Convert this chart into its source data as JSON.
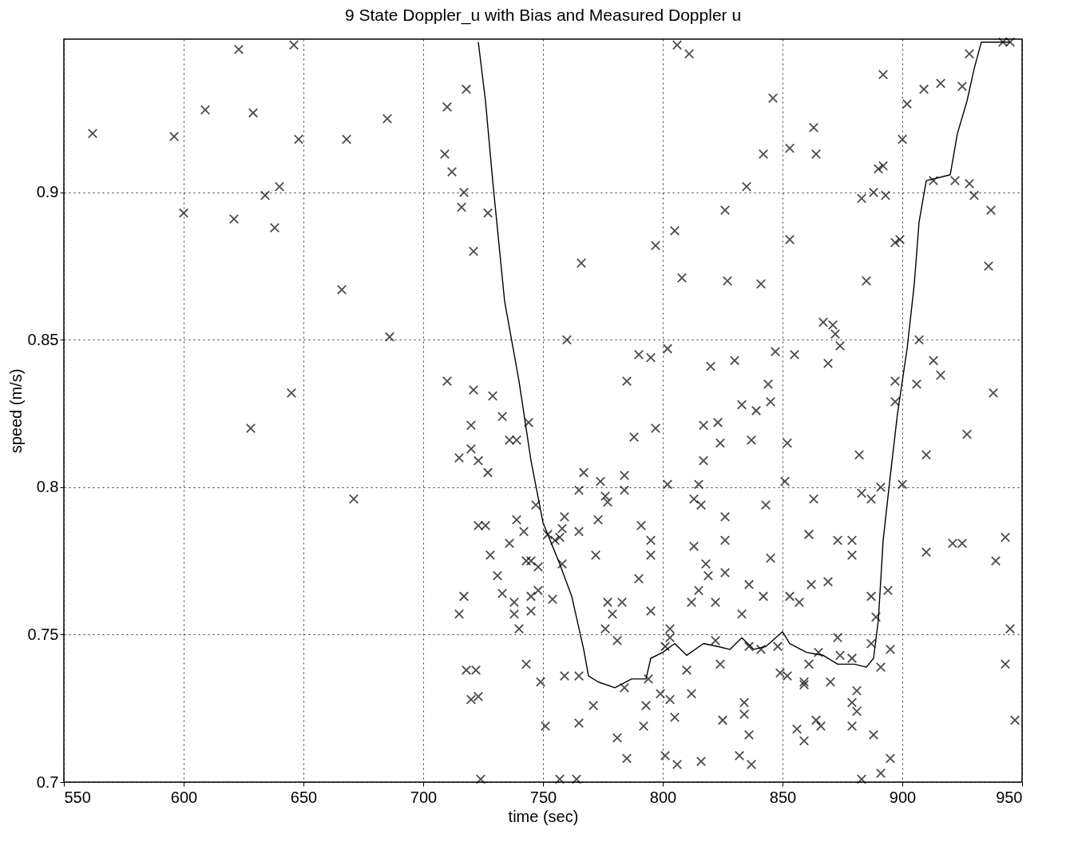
{
  "chart_data": {
    "type": "scatter",
    "title": "9 State Doppler_u with Bias and Measured Doppler u",
    "xlabel": "time (sec)",
    "ylabel": "speed (m/s)",
    "xlim": [
      550,
      950
    ],
    "ylim": [
      0.7,
      0.952
    ],
    "xticks": [
      550,
      600,
      650,
      700,
      750,
      800,
      850,
      900,
      950
    ],
    "yticks": [
      0.7,
      0.75,
      0.8,
      0.85,
      0.9
    ],
    "grid": true,
    "series": [
      {
        "type": "scatter",
        "marker": "cross",
        "color": "#000000",
        "x": [
          562,
          623,
          646,
          609,
          629,
          596,
          648,
          668,
          685,
          600,
          634,
          640,
          621,
          638,
          666,
          686,
          645,
          628,
          671,
          710,
          718,
          709,
          712,
          717,
          716,
          727,
          721,
          710,
          721,
          720,
          720,
          715,
          723,
          727,
          729,
          733,
          736,
          739,
          744,
          723,
          726,
          717,
          715,
          728,
          731,
          733,
          739,
          736,
          742,
          743,
          745,
          745,
          738,
          738,
          740,
          745,
          748,
          748,
          747,
          752,
          743,
          718,
          722,
          720,
          723,
          724,
          749,
          751,
          757,
          758,
          759,
          755,
          758,
          757,
          754,
          759,
          765,
          765,
          767,
          765,
          764,
          765,
          766,
          760,
          772,
          771,
          774,
          776,
          773,
          777,
          777,
          779,
          776,
          781,
          783,
          781,
          784,
          784,
          784,
          785,
          785,
          788,
          790,
          795,
          793,
          792,
          794,
          791,
          790,
          795,
          795,
          797,
          797,
          795,
          803,
          799,
          801,
          802,
          802,
          801,
          803,
          805,
          806,
          811,
          808,
          803,
          805,
          806,
          813,
          812,
          813,
          810,
          815,
          812,
          816,
          815,
          816,
          818,
          819,
          817,
          817,
          820,
          823,
          824,
          822,
          822,
          824,
          825,
          826,
          826,
          826,
          826,
          827,
          830,
          835,
          833,
          833,
          834,
          834,
          836,
          836,
          837,
          836,
          832,
          837,
          839,
          842,
          841,
          841,
          842,
          844,
          845,
          846,
          843,
          845,
          847,
          848,
          849,
          851,
          852,
          852,
          853,
          853,
          853,
          855,
          856,
          859,
          859,
          857,
          859,
          861,
          861,
          862,
          863,
          863,
          864,
          865,
          864,
          866,
          867,
          869,
          869,
          871,
          870,
          872,
          873,
          874,
          873,
          879,
          879,
          874,
          879,
          879,
          879,
          881,
          881,
          883,
          883,
          883,
          885,
          882,
          887,
          887,
          887,
          888,
          888,
          890,
          889,
          891,
          891,
          892,
          891,
          893,
          892,
          895,
          895,
          894,
          897,
          897,
          897,
          899,
          900,
          900,
          902,
          906,
          907,
          909,
          910,
          910,
          913,
          916,
          916,
          913,
          922,
          925,
          928,
          928,
          930,
          927,
          921,
          925,
          936,
          937,
          938,
          939,
          943,
          943,
          945,
          947,
          942,
          945
        ],
        "values": [
          0.92,
          0.9485,
          0.95,
          0.928,
          0.927,
          0.919,
          0.918,
          0.918,
          0.925,
          0.893,
          0.899,
          0.902,
          0.891,
          0.888,
          0.867,
          0.851,
          0.832,
          0.82,
          0.796,
          0.929,
          0.935,
          0.913,
          0.907,
          0.9,
          0.895,
          0.893,
          0.88,
          0.836,
          0.833,
          0.821,
          0.813,
          0.81,
          0.809,
          0.805,
          0.831,
          0.824,
          0.816,
          0.816,
          0.822,
          0.787,
          0.787,
          0.763,
          0.757,
          0.777,
          0.77,
          0.764,
          0.789,
          0.781,
          0.785,
          0.775,
          0.775,
          0.763,
          0.761,
          0.757,
          0.752,
          0.758,
          0.765,
          0.773,
          0.794,
          0.784,
          0.74,
          0.738,
          0.738,
          0.728,
          0.729,
          0.701,
          0.734,
          0.719,
          0.783,
          0.786,
          0.79,
          0.782,
          0.774,
          0.701,
          0.762,
          0.736,
          0.799,
          0.785,
          0.805,
          0.72,
          0.701,
          0.736,
          0.876,
          0.85,
          0.777,
          0.726,
          0.802,
          0.797,
          0.789,
          0.795,
          0.761,
          0.757,
          0.752,
          0.748,
          0.761,
          0.715,
          0.732,
          0.804,
          0.799,
          0.708,
          0.836,
          0.817,
          0.845,
          0.844,
          0.726,
          0.719,
          0.735,
          0.787,
          0.769,
          0.782,
          0.777,
          0.82,
          0.882,
          0.758,
          0.752,
          0.73,
          0.709,
          0.801,
          0.847,
          0.746,
          0.749,
          0.887,
          0.95,
          0.947,
          0.871,
          0.728,
          0.722,
          0.706,
          0.796,
          0.761,
          0.78,
          0.738,
          0.765,
          0.73,
          0.707,
          0.801,
          0.794,
          0.774,
          0.77,
          0.809,
          0.821,
          0.841,
          0.822,
          0.815,
          0.761,
          0.748,
          0.74,
          0.721,
          0.79,
          0.782,
          0.771,
          0.894,
          0.87,
          0.843,
          0.902,
          0.828,
          0.757,
          0.727,
          0.723,
          0.746,
          0.767,
          0.816,
          0.716,
          0.709,
          0.706,
          0.826,
          0.763,
          0.869,
          0.745,
          0.913,
          0.835,
          0.829,
          0.932,
          0.794,
          0.776,
          0.846,
          0.746,
          0.737,
          0.802,
          0.736,
          0.815,
          0.763,
          0.915,
          0.884,
          0.845,
          0.718,
          0.714,
          0.734,
          0.761,
          0.733,
          0.784,
          0.74,
          0.767,
          0.796,
          0.922,
          0.913,
          0.744,
          0.721,
          0.719,
          0.856,
          0.842,
          0.768,
          0.855,
          0.734,
          0.852,
          0.749,
          0.848,
          0.782,
          0.782,
          0.777,
          0.743,
          0.742,
          0.727,
          0.719,
          0.724,
          0.731,
          0.898,
          0.701,
          0.798,
          0.87,
          0.811,
          0.796,
          0.763,
          0.747,
          0.716,
          0.9,
          0.908,
          0.756,
          0.739,
          0.703,
          0.909,
          0.8,
          0.899,
          0.94,
          0.745,
          0.708,
          0.765,
          0.836,
          0.829,
          0.883,
          0.884,
          0.918,
          0.801,
          0.93,
          0.835,
          0.85,
          0.935,
          0.811,
          0.778,
          0.843,
          0.838,
          0.937,
          0.904,
          0.904,
          0.936,
          0.947,
          0.903,
          0.899,
          0.818,
          0.781,
          0.781,
          0.875,
          0.894,
          0.832,
          0.775,
          0.783,
          0.74,
          0.752,
          0.721,
          0.951,
          0.951
        ]
      },
      {
        "type": "line",
        "line_style": "solid",
        "color": "#000000",
        "x": [
          723,
          726,
          729,
          734,
          740,
          745,
          750,
          757,
          762,
          767,
          769,
          773,
          780,
          787,
          793,
          795,
          800,
          805,
          810,
          817,
          823,
          828,
          833,
          838,
          843,
          850,
          853,
          860,
          867,
          873,
          880,
          885,
          888,
          890,
          892,
          895,
          898,
          902,
          905,
          907,
          910,
          915,
          920,
          923,
          927,
          930,
          933,
          940,
          945
        ],
        "values": [
          0.951,
          0.931,
          0.904,
          0.863,
          0.836,
          0.809,
          0.788,
          0.774,
          0.763,
          0.745,
          0.736,
          0.734,
          0.732,
          0.735,
          0.735,
          0.742,
          0.744,
          0.747,
          0.743,
          0.747,
          0.746,
          0.745,
          0.749,
          0.745,
          0.746,
          0.751,
          0.747,
          0.744,
          0.743,
          0.74,
          0.74,
          0.739,
          0.742,
          0.755,
          0.782,
          0.804,
          0.825,
          0.847,
          0.869,
          0.89,
          0.904,
          0.905,
          0.906,
          0.92,
          0.931,
          0.942,
          0.951,
          0.951,
          0.951
        ]
      }
    ]
  }
}
